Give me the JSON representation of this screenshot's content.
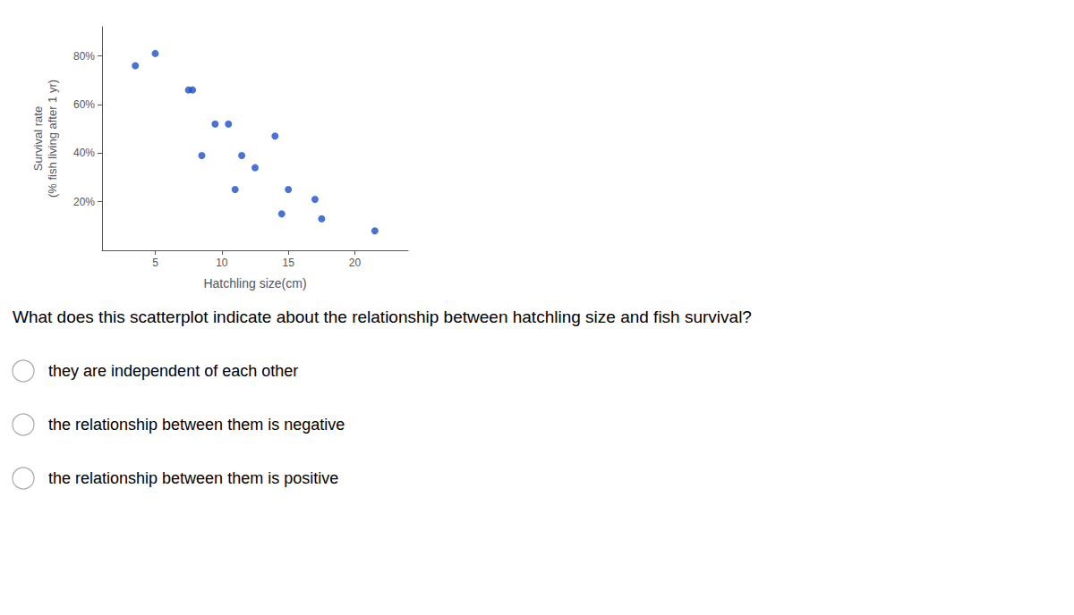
{
  "chart_data": {
    "type": "scatter",
    "x": [
      3.5,
      5.0,
      7.5,
      7.8,
      8.5,
      9.5,
      10.5,
      11.0,
      11.5,
      12.5,
      14.0,
      14.5,
      15.0,
      17.0,
      17.5,
      21.5
    ],
    "values": [
      76,
      81,
      66,
      66,
      39,
      52,
      52,
      25,
      39,
      34,
      47,
      15,
      25,
      21,
      13,
      8
    ],
    "color": "#1a4fcc",
    "xlabel": "Hatchling size(cm)",
    "ylabel": "Survival rate\n(% fish living after 1 yr)",
    "xlim": [
      1,
      24
    ],
    "ylim": [
      0,
      92
    ],
    "xticks": [
      5,
      10,
      15,
      20
    ],
    "yticks": [
      {
        "value": 20,
        "label": "20%"
      },
      {
        "value": 40,
        "label": "40%"
      },
      {
        "value": 60,
        "label": "60%"
      },
      {
        "value": 80,
        "label": "80%"
      }
    ],
    "grid": false,
    "annotations": [
      "What does this scatterplot indicate about the relationship between hatchling size and fish survival?",
      "they are independent of each other",
      "the relationship between them is negative",
      "the relationship between them is positive"
    ]
  }
}
